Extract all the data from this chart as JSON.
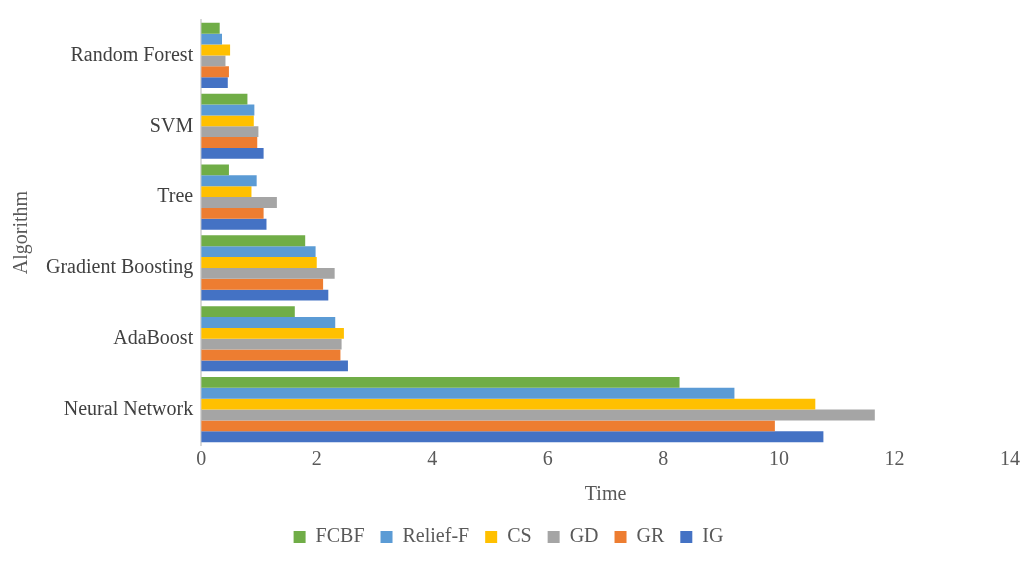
{
  "chart_data": {
    "type": "bar",
    "orientation": "horizontal",
    "xlabel": "Time",
    "ylabel": "Algorithm",
    "categories": [
      "Random Forest",
      "SVM",
      "Tree",
      "Gradient Boosting",
      "AdaBoost",
      "Neural Network"
    ],
    "series": [
      {
        "name": "FCBF",
        "color": "#70ad47",
        "values": [
          0.32,
          0.8,
          0.48,
          1.8,
          1.62,
          8.28
        ]
      },
      {
        "name": "Relief-F",
        "color": "#5b9bd5",
        "values": [
          0.36,
          0.92,
          0.96,
          1.98,
          2.32,
          9.23
        ]
      },
      {
        "name": "CS",
        "color": "#ffc000",
        "values": [
          0.5,
          0.91,
          0.87,
          2.0,
          2.47,
          10.63
        ]
      },
      {
        "name": "GD",
        "color": "#a5a5a5",
        "values": [
          0.42,
          0.99,
          1.31,
          2.31,
          2.43,
          11.66
        ]
      },
      {
        "name": "GR",
        "color": "#ed7d31",
        "values": [
          0.48,
          0.97,
          1.08,
          2.11,
          2.41,
          9.93
        ]
      },
      {
        "name": "IG",
        "color": "#4472c4",
        "values": [
          0.46,
          1.08,
          1.13,
          2.2,
          2.54,
          10.77
        ]
      }
    ],
    "xlim": [
      0,
      14
    ],
    "xticks": [
      0,
      2,
      4,
      6,
      8,
      10,
      12,
      14
    ],
    "grid": false,
    "legend": "bottom"
  }
}
